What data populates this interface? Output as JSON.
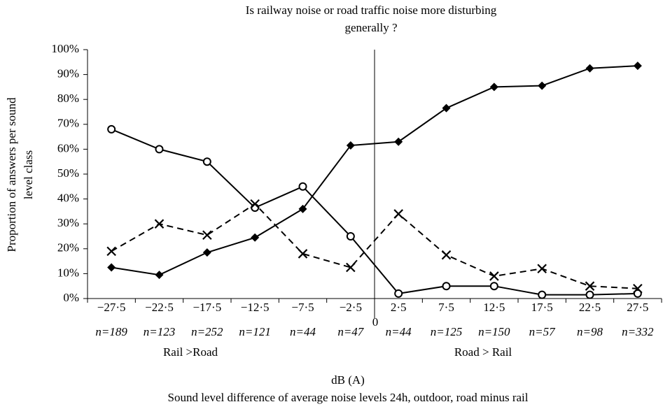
{
  "chart_data": {
    "type": "line",
    "title": [
      "Is railway noise or road traffic noise more disturbing",
      "generally ?"
    ],
    "ylabel": [
      "Proportion of answers per sound",
      "level class"
    ],
    "xlabel": "dB (A)",
    "xlabel_note": "Sound level difference of average noise levels 24h, outdoor, road minus rail",
    "categories": [
      "−27·5",
      "−22·5",
      "−17·5",
      "−12·5",
      "−7·5",
      "−2·5",
      "2·5",
      "7·5",
      "12·5",
      "17·5",
      "22·5",
      "27·5"
    ],
    "n_labels": [
      "n=189",
      "n=123",
      "n=252",
      "n=121",
      "n=44",
      "n=47",
      "n=44",
      "n=125",
      "n=150",
      "n=57",
      "n=98",
      "n=332"
    ],
    "zero_label": "0",
    "group_labels": [
      "Rail >Road",
      "Road > Rail"
    ],
    "series": [
      {
        "color": "#000000",
        "marker": "diamond",
        "dash": false,
        "values": [
          12.5,
          9.5,
          18.5,
          24.5,
          36,
          61.5,
          63,
          76.5,
          85,
          85.5,
          92.5,
          93.5
        ]
      },
      {
        "color": "#000000",
        "marker": "circle",
        "dash": false,
        "values": [
          68,
          60,
          55,
          36.5,
          45,
          25,
          2,
          5,
          5,
          1.5,
          1.5,
          2
        ]
      },
      {
        "color": "#000000",
        "marker": "cross",
        "dash": true,
        "values": [
          19,
          30,
          25.5,
          38,
          18,
          12.5,
          34,
          17.5,
          9,
          12,
          5,
          4
        ]
      }
    ],
    "ylim": [
      0,
      100
    ],
    "yticks": [
      {
        "value": 0,
        "label": "0%"
      },
      {
        "value": 10,
        "label": "10%"
      },
      {
        "value": 20,
        "label": "20%"
      },
      {
        "value": 30,
        "label": "30%"
      },
      {
        "value": 40,
        "label": "40%"
      },
      {
        "value": 50,
        "label": "50%"
      },
      {
        "value": 60,
        "label": "60%"
      },
      {
        "value": 70,
        "label": "70%"
      },
      {
        "value": 80,
        "label": "80%"
      },
      {
        "value": 90,
        "label": "90%"
      },
      {
        "value": 100,
        "label": "100%"
      }
    ],
    "grid": false
  }
}
